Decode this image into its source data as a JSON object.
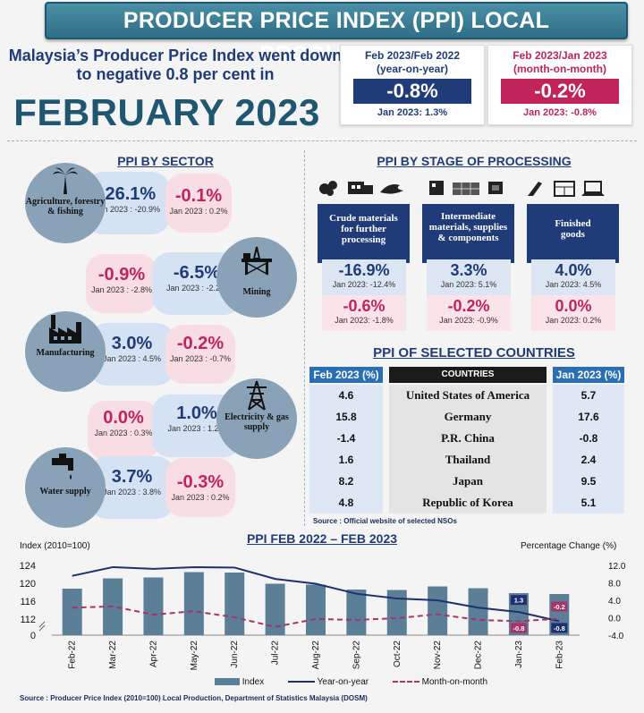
{
  "title": "PRODUCER PRICE INDEX (PPI) LOCAL PRODUCTION",
  "headline": {
    "line1": "Malaysia’s Producer Price Index went down",
    "line2": "to negative 0.8 per cent in",
    "month": "FEBRUARY 2023"
  },
  "cards": {
    "yoy": {
      "label1": "Feb 2023/Feb 2022",
      "label2": "(year-on-year)",
      "value": "-0.8%",
      "prev": "Jan 2023: 1.3%",
      "color": "#1f3c78"
    },
    "mom": {
      "label1": "Feb 2023/Jan 2023",
      "label2": "(month-on-month)",
      "value": "-0.2%",
      "prev": "Jan 2023: -0.8%",
      "color": "#c0245a"
    }
  },
  "sector": {
    "title": "PPI BY SECTOR",
    "items": [
      {
        "name": "Agriculture, forestry & fishing",
        "icon": "palm-tree-icon",
        "yoy": "-26.1%",
        "yoy_prev": "Jan 2023 : -20.9%",
        "mom": "-0.1%",
        "mom_prev": "Jan 2023 : 0.2%"
      },
      {
        "name": "Mining",
        "icon": "oil-rig-icon",
        "yoy": "-6.5%",
        "yoy_prev": "Jan 2023 : -2.2%",
        "mom": "-0.9%",
        "mom_prev": "Jan 2023 : -2.8%"
      },
      {
        "name": "Manufacturing",
        "icon": "factory-icon",
        "yoy": "3.0%",
        "yoy_prev": "Jan 2023 : 4.5%",
        "mom": "-0.2%",
        "mom_prev": "Jan 2023 : -0.7%"
      },
      {
        "name": "Electricity & gas supply",
        "icon": "power-tower-icon",
        "yoy": "1.0%",
        "yoy_prev": "Jan 2023 : 1.2%",
        "mom": "0.0%",
        "mom_prev": "Jan 2023 : 0.3%"
      },
      {
        "name": "Water supply",
        "icon": "water-tap-icon",
        "yoy": "3.7%",
        "yoy_prev": "Jan 2023 : 3.8%",
        "mom": "-0.3%",
        "mom_prev": "Jan 2023 : 0.2%"
      }
    ]
  },
  "stage": {
    "title": "PPI BY STAGE OF PROCESSING",
    "items": [
      {
        "name": "Crude materials for further processing",
        "yoy": "-16.9%",
        "yoy_prev": "Jan 2023: -12.4%",
        "mom": "-0.6%",
        "mom_prev": "Jan 2023: -1.8%"
      },
      {
        "name": "Intermediate materials, supplies & components",
        "yoy": "3.3%",
        "yoy_prev": "Jan 2023: 5.1%",
        "mom": "-0.2%",
        "mom_prev": "Jan 2023: -0.9%"
      },
      {
        "name": "Finished goods",
        "yoy": "4.0%",
        "yoy_prev": "Jan 2023: 4.5%",
        "mom": "0.0%",
        "mom_prev": "Jan 2023: 0.2%"
      }
    ]
  },
  "countries": {
    "title": "PPI OF SELECTED COUNTRIES",
    "col_feb": "Feb 2023 (%)",
    "col_name": "COUNTRIES",
    "col_jan": "Jan 2023 (%)",
    "rows": [
      {
        "feb": "4.6",
        "name": "United States of America",
        "jan": "5.7"
      },
      {
        "feb": "15.8",
        "name": "Germany",
        "jan": "17.6"
      },
      {
        "feb": "-1.4",
        "name": "P.R. China",
        "jan": "-0.8"
      },
      {
        "feb": "1.6",
        "name": "Thailand",
        "jan": "2.4"
      },
      {
        "feb": "8.2",
        "name": "Japan",
        "jan": "9.5"
      },
      {
        "feb": "4.8",
        "name": "Republic of Korea",
        "jan": "5.1"
      }
    ],
    "source": "Source : Official website of selected NSOs"
  },
  "chart_data": {
    "type": "bar",
    "title": "PPI FEB 2022 – FEB 2023",
    "ylabel_left": "Index (2010=100)",
    "ylabel_right": "Percentage Change (%)",
    "left_ticks": [
      "124",
      "120",
      "116",
      "112",
      "0"
    ],
    "right_ticks": [
      "12.0",
      "8.0",
      "4.0",
      "0.0",
      "-4.0"
    ],
    "ylim_right": [
      -4,
      12
    ],
    "categories": [
      "Feb-22",
      "Mar-22",
      "Apr-22",
      "May-22",
      "Jun-22",
      "Jul-22",
      "Aug-22",
      "Sep-22",
      "Oct-22",
      "Nov-22",
      "Dec-22",
      "Jan-23",
      "Feb-23"
    ],
    "series": [
      {
        "name": "Index",
        "kind": "bar",
        "axis": "left",
        "values": [
          118.8,
          121.1,
          121.3,
          122.5,
          122.4,
          119.9,
          119.7,
          118.6,
          118.5,
          119.3,
          118.9,
          117.8,
          117.6
        ],
        "color": "#5c7f98"
      },
      {
        "name": "Year-on-year",
        "kind": "line",
        "axis": "right",
        "values": [
          9.6,
          11.6,
          11.2,
          11.6,
          11.5,
          8.9,
          7.8,
          5.5,
          4.4,
          4.0,
          2.3,
          1.3,
          -0.8
        ],
        "color": "#1f3070"
      },
      {
        "name": "Month-on-month",
        "kind": "dashed",
        "axis": "right",
        "values": [
          2.3,
          2.6,
          0.7,
          1.5,
          0.1,
          -2.1,
          -0.3,
          -0.5,
          -0.1,
          0.8,
          -0.5,
          -0.8,
          -0.2
        ],
        "color": "#a8336a"
      }
    ],
    "annotations": [
      {
        "category": "Jan-23",
        "label": "1.3",
        "series": "Year-on-year"
      },
      {
        "category": "Jan-23",
        "label": "-0.8",
        "series": "Month-on-month"
      },
      {
        "category": "Feb-23",
        "label": "-0.2",
        "series": "Month-on-month"
      },
      {
        "category": "Feb-23",
        "label": "-0.8",
        "series": "Year-on-year"
      }
    ]
  },
  "footer_source": "Source : Producer Price Index (2010=100) Local Production, Department of Statistics Malaysia (DOSM)"
}
